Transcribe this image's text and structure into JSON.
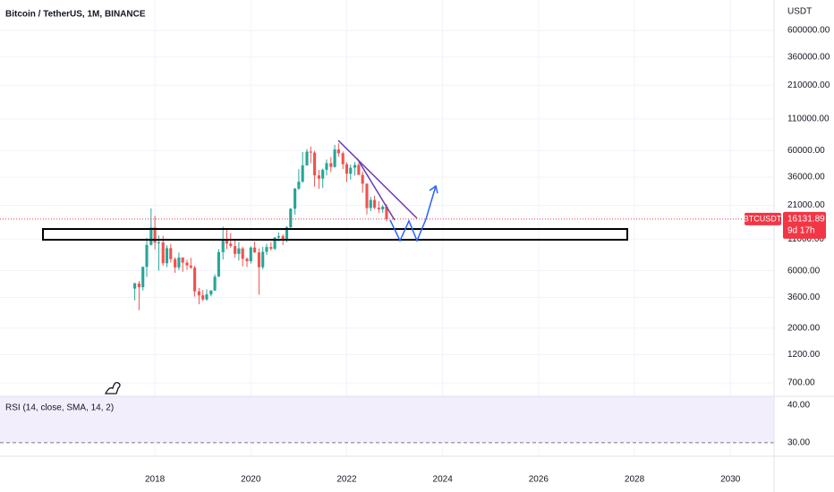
{
  "chart_data": {
    "type": "candlestick",
    "title": "Bitcoin / TetherUS, 1M, BINANCE",
    "unit_label": "USDT",
    "symbol": "BTCUSDT",
    "countdown": "9d 17h",
    "last_price": 16131.89,
    "x": [
      2017.58,
      2017.67,
      2017.75,
      2017.83,
      2017.92,
      2018,
      2018.08,
      2018.17,
      2018.25,
      2018.33,
      2018.42,
      2018.5,
      2018.58,
      2018.67,
      2018.75,
      2018.83,
      2018.92,
      2019,
      2019.08,
      2019.17,
      2019.25,
      2019.33,
      2019.42,
      2019.5,
      2019.58,
      2019.67,
      2019.75,
      2019.83,
      2019.92,
      2020,
      2020.08,
      2020.17,
      2020.25,
      2020.33,
      2020.42,
      2020.5,
      2020.58,
      2020.67,
      2020.75,
      2020.83,
      2020.92,
      2021,
      2021.08,
      2021.17,
      2021.25,
      2021.33,
      2021.42,
      2021.5,
      2021.58,
      2021.67,
      2021.75,
      2021.83,
      2021.92,
      2022,
      2022.08,
      2022.17,
      2022.25,
      2022.33,
      2022.42,
      2022.5,
      2022.58,
      2022.67,
      2022.75,
      2022.83
    ],
    "open": [
      4261,
      4690,
      4378,
      6463,
      9838,
      13716,
      10285,
      10326,
      6923,
      9246,
      7494,
      6391,
      7730,
      7011,
      6626,
      6371,
      4041,
      3742,
      3458,
      3813,
      4105,
      5351,
      8574,
      10817,
      10085,
      9630,
      8293,
      9200,
      7546,
      7194,
      9350,
      8523,
      6410,
      8620,
      9448,
      9138,
      11335,
      11650,
      10776,
      13791,
      19695,
      28923,
      33092,
      45135,
      58740,
      57694,
      37253,
      35045,
      41461,
      47100,
      43824,
      61299,
      56950,
      46216,
      38466,
      43160,
      45510,
      37630,
      31801,
      19942,
      23293,
      20050,
      19423,
      20490
    ],
    "high": [
      4745,
      4939,
      6470,
      11300,
      19798,
      17176,
      11786,
      11710,
      9759,
      10020,
      7760,
      8507,
      7750,
      7410,
      7680,
      6588,
      4312,
      4143,
      4198,
      4140,
      5600,
      9074,
      13970,
      13200,
      12325,
      10905,
      10370,
      9505,
      7750,
      9578,
      10500,
      9188,
      9468,
      10067,
      10380,
      11444,
      12468,
      12050,
      14100,
      19863,
      29300,
      41950,
      58352,
      61844,
      64854,
      59592,
      41330,
      42448,
      50500,
      52920,
      67000,
      69000,
      59053,
      47990,
      45821,
      48189,
      47444,
      40023,
      31982,
      24668,
      25211,
      22799,
      21085,
      21480
    ],
    "low": [
      3400,
      2817,
      4110,
      5325,
      9722,
      9035,
      6000,
      6600,
      6430,
      7032,
      5755,
      6070,
      5880,
      6100,
      6200,
      3652,
      3156,
      3349,
      3373,
      3670,
      4080,
      5321,
      7444,
      9071,
      9320,
      7710,
      7300,
      6515,
      6435,
      6871,
      8450,
      3782,
      6150,
      8117,
      8833,
      8893,
      10518,
      9825,
      10375,
      13195,
      17572,
      28130,
      32296,
      44950,
      47044,
      30000,
      28805,
      29278,
      37332,
      39600,
      43283,
      53256,
      42000,
      32917,
      34322,
      37155,
      37578,
      26700,
      17622,
      18781,
      19520,
      18125,
      18190,
      15476
    ],
    "close": [
      4724,
      4378,
      6463,
      9838,
      13716,
      10285,
      10326,
      6923,
      9246,
      7494,
      6391,
      7730,
      7011,
      6626,
      6371,
      4041,
      3742,
      3458,
      3813,
      4105,
      5351,
      8574,
      10817,
      10085,
      9630,
      8293,
      9200,
      7546,
      7194,
      9350,
      8523,
      6410,
      8620,
      9448,
      9138,
      11335,
      11650,
      10776,
      13791,
      19695,
      28923,
      33092,
      45135,
      58740,
      57694,
      37253,
      35045,
      41461,
      47100,
      43824,
      61299,
      56950,
      46216,
      38466,
      43160,
      45510,
      37630,
      31801,
      19942,
      23293,
      20050,
      19423,
      20490,
      16131.89
    ],
    "colors": {
      "up": "#26a69a",
      "down": "#ef5350",
      "last": "#f23645"
    },
    "log_scale": true,
    "grid": true,
    "xlim": [
      2014.77,
      2030.91
    ],
    "xticks": [
      2018,
      2020,
      2022,
      2024,
      2026,
      2028,
      2030
    ],
    "ylim": [
      541,
      1074000
    ],
    "yticks": [
      {
        "value": 600000,
        "label": "600000.00"
      },
      {
        "value": 360000,
        "label": "360000.00"
      },
      {
        "value": 210000,
        "label": "210000.00"
      },
      {
        "value": 110000,
        "label": "110000.00"
      },
      {
        "value": 60000,
        "label": "60000.00"
      },
      {
        "value": 36000,
        "label": "36000.00"
      },
      {
        "value": 21000,
        "label": "21000.00"
      },
      {
        "value": 11000,
        "label": "11000.00"
      },
      {
        "value": 6000,
        "label": "6000.00"
      },
      {
        "value": 3600,
        "label": "3600.00"
      },
      {
        "value": 2000,
        "label": "2000.00"
      },
      {
        "value": 1200,
        "label": "1200.00"
      },
      {
        "value": 700,
        "label": "700.00"
      }
    ]
  },
  "rsi_pane": {
    "title": "RSI (14, close, SMA, 14, 2)",
    "ylim": [
      26.4,
      42.4
    ],
    "yticks": [
      {
        "value": 40,
        "label": "40.00"
      },
      {
        "value": 30,
        "label": "30.00"
      }
    ]
  }
}
